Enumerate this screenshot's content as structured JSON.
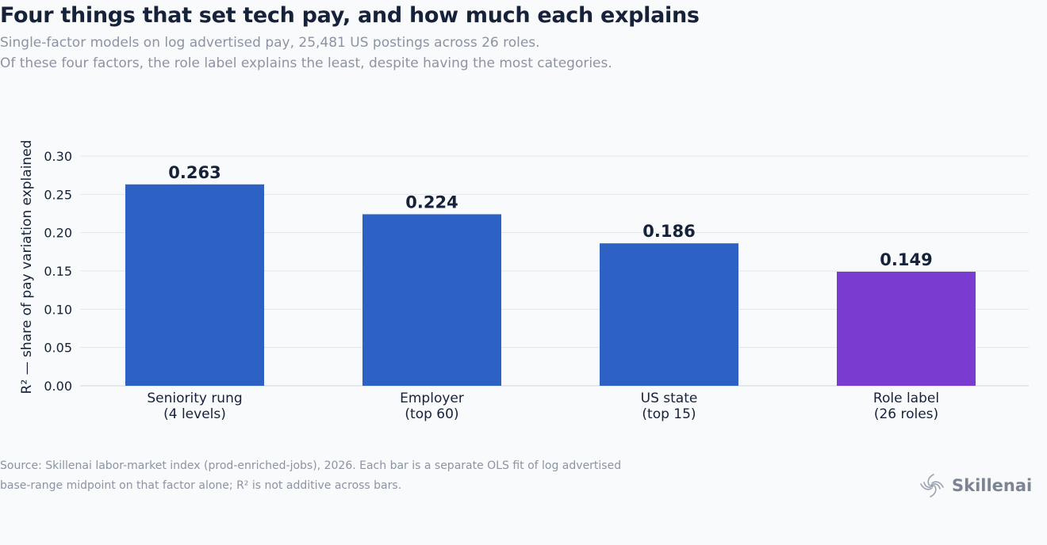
{
  "title": "Four things that set tech pay, and how much each explains",
  "subtitle": [
    "Single-factor models on log advertised pay, 25,481 US postings across 26 roles.",
    "Of these four factors, the role label explains the least, despite having the most categories."
  ],
  "source": [
    "Source: Skillenai labor-market index (prod-enriched-jobs), 2026. Each bar is a separate OLS fit of log advertised",
    "base-range midpoint on that factor alone; R² is not additive across bars."
  ],
  "brand": {
    "name": "Skillenai",
    "icon": "spiral-logo-icon"
  },
  "colors": {
    "primary": "#2d62c4",
    "highlight": "#7a3bd0",
    "text": "#16213a",
    "muted": "#8c93a3",
    "grid": "#e3e6ec"
  },
  "chart_data": {
    "type": "bar",
    "categories": [
      [
        "Seniority rung",
        "(4 levels)"
      ],
      [
        "Employer",
        "(top 60)"
      ],
      [
        "US state",
        "(top 15)"
      ],
      [
        "Role label",
        "(26 roles)"
      ]
    ],
    "values": [
      0.263,
      0.224,
      0.186,
      0.149
    ],
    "data_labels": [
      "0.263",
      "0.224",
      "0.186",
      "0.149"
    ],
    "bar_colors": [
      "#2d62c4",
      "#2d62c4",
      "#2d62c4",
      "#7a3bd0"
    ],
    "ylabel": "R² — share of pay variation explained",
    "xlabel": "",
    "ylim": [
      0,
      0.3
    ],
    "yticks": [
      "0.00",
      "0.05",
      "0.10",
      "0.15",
      "0.20",
      "0.25",
      "0.30"
    ],
    "grid": true
  }
}
